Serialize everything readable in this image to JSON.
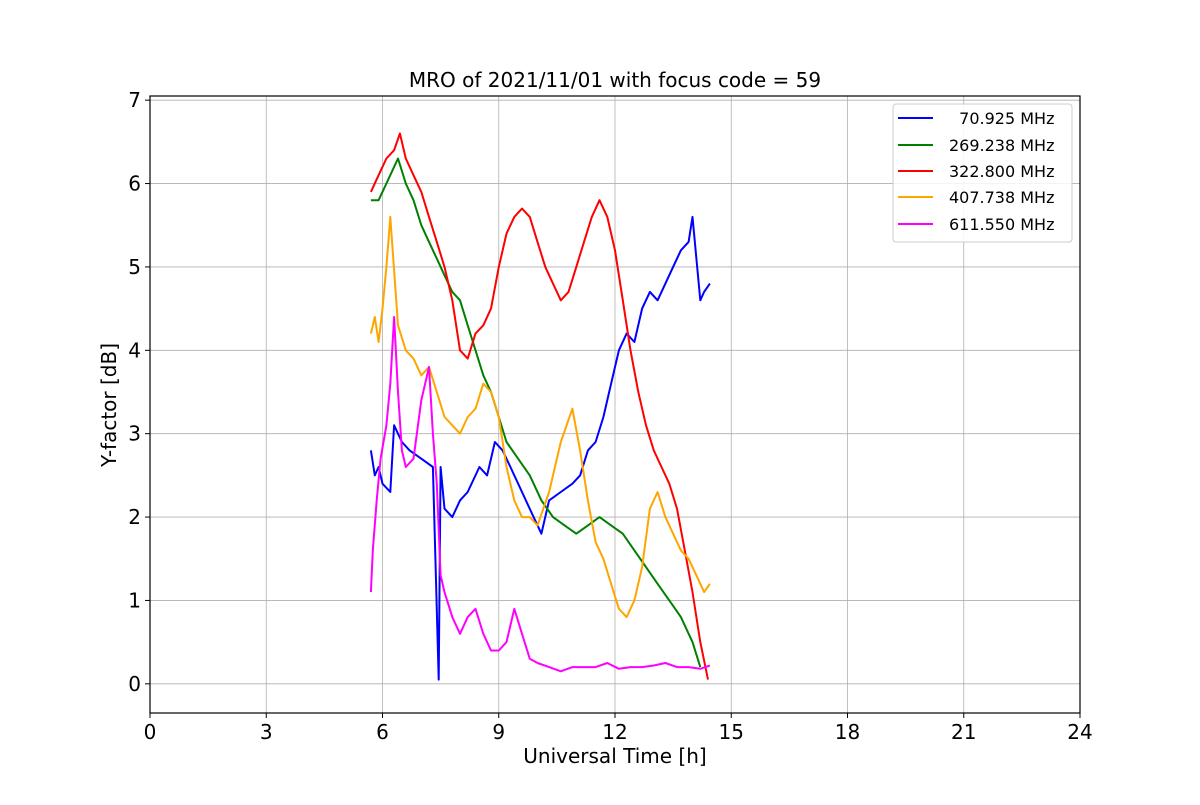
{
  "chart_data": {
    "type": "line",
    "title": "MRO of 2021/11/01 with focus code = 59",
    "xlabel": "Universal Time [h]",
    "ylabel": "Y-factor [dB]",
    "xlim": [
      0,
      24
    ],
    "ylim": [
      -0.35,
      7.05
    ],
    "xticks": [
      0,
      3,
      6,
      9,
      12,
      15,
      18,
      21,
      24
    ],
    "yticks": [
      0,
      1,
      2,
      3,
      4,
      5,
      6,
      7
    ],
    "grid": true,
    "legend_position": "top-right",
    "series": [
      {
        "name": "70.925 MHz",
        "legend_label": "  70.925 MHz",
        "color": "#0000ff",
        "x": [
          5.7,
          5.8,
          5.9,
          6.0,
          6.2,
          6.3,
          6.5,
          6.7,
          7.0,
          7.3,
          7.45,
          7.5,
          7.6,
          7.8,
          8.0,
          8.2,
          8.5,
          8.7,
          8.9,
          9.1,
          9.3,
          9.6,
          9.9,
          10.1,
          10.3,
          10.6,
          10.9,
          11.1,
          11.3,
          11.5,
          11.7,
          11.9,
          12.1,
          12.3,
          12.5,
          12.7,
          12.9,
          13.1,
          13.3,
          13.5,
          13.7,
          13.9,
          14.0,
          14.1,
          14.2,
          14.3,
          14.45
        ],
        "y": [
          2.8,
          2.5,
          2.6,
          2.4,
          2.3,
          3.1,
          2.9,
          2.8,
          2.7,
          2.6,
          0.05,
          2.6,
          2.1,
          2.0,
          2.2,
          2.3,
          2.6,
          2.5,
          2.9,
          2.8,
          2.6,
          2.3,
          2.0,
          1.8,
          2.2,
          2.3,
          2.4,
          2.5,
          2.8,
          2.9,
          3.2,
          3.6,
          4.0,
          4.2,
          4.1,
          4.5,
          4.7,
          4.6,
          4.8,
          5.0,
          5.2,
          5.3,
          5.6,
          5.1,
          4.6,
          4.7,
          4.8
        ]
      },
      {
        "name": "269.238 MHz",
        "legend_label": "269.238 MHz",
        "color": "#008000",
        "x": [
          5.7,
          5.9,
          6.1,
          6.3,
          6.4,
          6.6,
          6.8,
          7.0,
          7.2,
          7.4,
          7.6,
          7.8,
          8.0,
          8.2,
          8.4,
          8.6,
          8.8,
          9.0,
          9.2,
          9.5,
          9.8,
          10.1,
          10.4,
          10.7,
          11.0,
          11.3,
          11.6,
          11.9,
          12.2,
          12.5,
          12.8,
          13.1,
          13.4,
          13.7,
          14.0,
          14.2
        ],
        "y": [
          5.8,
          5.8,
          6.0,
          6.2,
          6.3,
          6.0,
          5.8,
          5.5,
          5.3,
          5.1,
          4.9,
          4.7,
          4.6,
          4.3,
          4.0,
          3.7,
          3.5,
          3.2,
          2.9,
          2.7,
          2.5,
          2.2,
          2.0,
          1.9,
          1.8,
          1.9,
          2.0,
          1.9,
          1.8,
          1.6,
          1.4,
          1.2,
          1.0,
          0.8,
          0.5,
          0.2
        ]
      },
      {
        "name": "322.800 MHz",
        "legend_label": "322.800 MHz",
        "color": "#ff0000",
        "x": [
          5.7,
          5.9,
          6.1,
          6.3,
          6.45,
          6.6,
          6.8,
          7.0,
          7.2,
          7.4,
          7.6,
          7.8,
          8.0,
          8.2,
          8.4,
          8.6,
          8.8,
          9.0,
          9.2,
          9.4,
          9.6,
          9.8,
          10.0,
          10.2,
          10.4,
          10.6,
          10.8,
          11.0,
          11.2,
          11.4,
          11.6,
          11.8,
          12.0,
          12.2,
          12.4,
          12.6,
          12.8,
          13.0,
          13.2,
          13.4,
          13.6,
          13.8,
          14.0,
          14.2,
          14.4
        ],
        "y": [
          5.9,
          6.1,
          6.3,
          6.4,
          6.6,
          6.3,
          6.1,
          5.9,
          5.6,
          5.3,
          5.0,
          4.6,
          4.0,
          3.9,
          4.2,
          4.3,
          4.5,
          5.0,
          5.4,
          5.6,
          5.7,
          5.6,
          5.3,
          5.0,
          4.8,
          4.6,
          4.7,
          5.0,
          5.3,
          5.6,
          5.8,
          5.6,
          5.2,
          4.6,
          4.0,
          3.5,
          3.1,
          2.8,
          2.6,
          2.4,
          2.1,
          1.6,
          1.1,
          0.5,
          0.05
        ]
      },
      {
        "name": "407.738 MHz",
        "legend_label": "407.738 MHz",
        "color": "#ffa500",
        "x": [
          5.7,
          5.8,
          5.9,
          6.0,
          6.1,
          6.2,
          6.4,
          6.6,
          6.8,
          7.0,
          7.2,
          7.4,
          7.6,
          7.8,
          8.0,
          8.2,
          8.4,
          8.6,
          8.8,
          9.0,
          9.2,
          9.4,
          9.6,
          9.8,
          10.0,
          10.3,
          10.6,
          10.9,
          11.1,
          11.3,
          11.5,
          11.7,
          11.9,
          12.1,
          12.3,
          12.5,
          12.7,
          12.9,
          13.1,
          13.3,
          13.5,
          13.7,
          13.9,
          14.1,
          14.3,
          14.45
        ],
        "y": [
          4.2,
          4.4,
          4.1,
          4.5,
          5.0,
          5.6,
          4.3,
          4.0,
          3.9,
          3.7,
          3.8,
          3.5,
          3.2,
          3.1,
          3.0,
          3.2,
          3.3,
          3.6,
          3.5,
          3.2,
          2.6,
          2.2,
          2.0,
          2.0,
          1.9,
          2.3,
          2.9,
          3.3,
          2.8,
          2.2,
          1.7,
          1.5,
          1.2,
          0.9,
          0.8,
          1.0,
          1.4,
          2.1,
          2.3,
          2.0,
          1.8,
          1.6,
          1.5,
          1.3,
          1.1,
          1.2
        ]
      },
      {
        "name": "611.550 MHz",
        "legend_label": "611.550 MHz",
        "color": "#ff00ff",
        "x": [
          5.7,
          5.75,
          5.85,
          5.95,
          6.1,
          6.2,
          6.3,
          6.4,
          6.5,
          6.6,
          6.8,
          7.0,
          7.2,
          7.3,
          7.4,
          7.5,
          7.6,
          7.8,
          8.0,
          8.2,
          8.4,
          8.6,
          8.8,
          9.0,
          9.2,
          9.4,
          9.6,
          9.8,
          10.0,
          10.3,
          10.6,
          10.9,
          11.2,
          11.5,
          11.8,
          12.1,
          12.4,
          12.7,
          13.0,
          13.3,
          13.6,
          13.9,
          14.2,
          14.45
        ],
        "y": [
          1.1,
          1.6,
          2.2,
          2.7,
          3.1,
          3.6,
          4.4,
          3.5,
          2.8,
          2.6,
          2.7,
          3.4,
          3.8,
          3.0,
          2.4,
          1.3,
          1.1,
          0.8,
          0.6,
          0.8,
          0.9,
          0.6,
          0.4,
          0.4,
          0.5,
          0.9,
          0.6,
          0.3,
          0.25,
          0.2,
          0.15,
          0.2,
          0.2,
          0.2,
          0.25,
          0.18,
          0.2,
          0.2,
          0.22,
          0.25,
          0.2,
          0.2,
          0.18,
          0.22
        ]
      }
    ]
  }
}
